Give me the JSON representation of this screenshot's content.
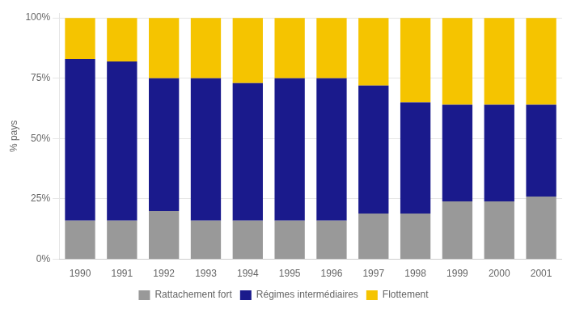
{
  "chart_data": {
    "type": "bar",
    "y_label": "% pays",
    "categories": [
      "1990",
      "1991",
      "1992",
      "1993",
      "1994",
      "1995",
      "1996",
      "1997",
      "1998",
      "1999",
      "2000",
      "2001"
    ],
    "series": [
      {
        "name": "Rattachement fort",
        "color": "#999999",
        "values": [
          16,
          16,
          20,
          16,
          16,
          16,
          16,
          19,
          19,
          24,
          24,
          26
        ]
      },
      {
        "name": "Régimes intermédiaires",
        "color": "#1a1a8c",
        "values": [
          67,
          66,
          55,
          59,
          57,
          59,
          59,
          53,
          46,
          40,
          40,
          38
        ]
      },
      {
        "name": "Flottement",
        "color": "#f5c400",
        "values": [
          17,
          18,
          25,
          25,
          27,
          25,
          25,
          28,
          35,
          36,
          36,
          36
        ]
      }
    ],
    "stacked": true,
    "ylim": [
      0,
      102
    ],
    "yticks": [
      {
        "value": 0,
        "label": "0%"
      },
      {
        "value": 25,
        "label": "25%"
      },
      {
        "value": 50,
        "label": "50%"
      },
      {
        "value": 75,
        "label": "75%"
      },
      {
        "value": 100,
        "label": "100%"
      }
    ],
    "grid": true,
    "legend": "bottom"
  }
}
